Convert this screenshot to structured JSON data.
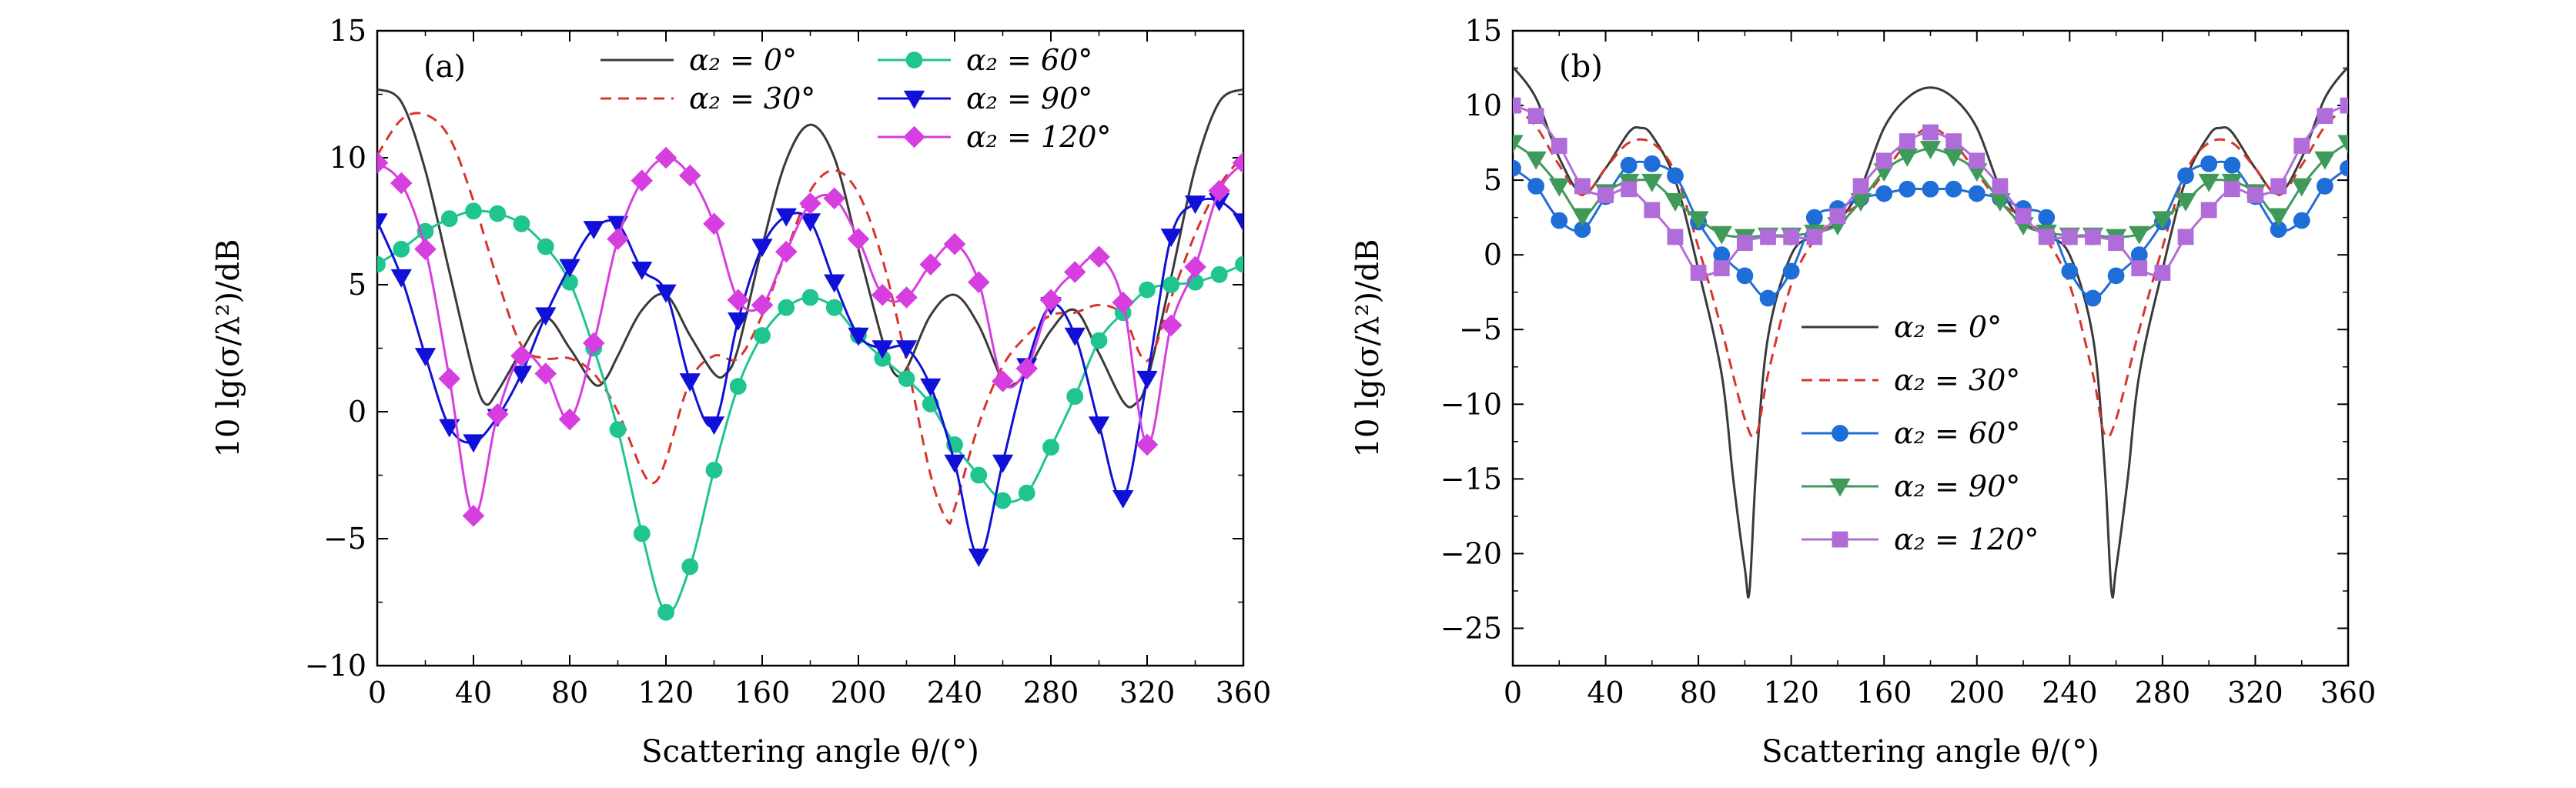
{
  "chart_data": [
    {
      "type": "line",
      "panel_label": "(a)",
      "xlabel": "Scattering angle θ/(°)",
      "ylabel": "10 lg(σ/λ²)/dB",
      "xlim": [
        0,
        360
      ],
      "ylim": [
        -10,
        15
      ],
      "xticks": [
        0,
        40,
        80,
        120,
        160,
        200,
        240,
        280,
        320,
        360
      ],
      "yticks": [
        -10,
        -5,
        0,
        5,
        10,
        15
      ],
      "xtick_labels": [
        "0",
        "40",
        "80",
        "120",
        "160",
        "200",
        "240",
        "280",
        "320",
        "360"
      ],
      "ytick_labels": [
        "−10",
        "−5",
        "0",
        "5",
        "10",
        "15"
      ],
      "legend_position": "top",
      "series": [
        {
          "name": "α₂ = 0°",
          "color": "#3a3a3a",
          "style": "solid",
          "marker": "none",
          "x": [
            0,
            10,
            20,
            30,
            40,
            45,
            50,
            60,
            70,
            80,
            90,
            95,
            100,
            110,
            120,
            130,
            140,
            145,
            150,
            160,
            170,
            180,
            190,
            200,
            210,
            215,
            220,
            230,
            240,
            250,
            260,
            265,
            270,
            280,
            290,
            300,
            310,
            315,
            320,
            330,
            340,
            350,
            360
          ],
          "y": [
            12.7,
            12.2,
            9.5,
            5.5,
            1.5,
            0.3,
            0.8,
            2.4,
            3.7,
            2.5,
            1.1,
            1.3,
            2.2,
            4.0,
            4.6,
            3.0,
            1.5,
            1.5,
            2.5,
            6.5,
            9.9,
            11.3,
            10.0,
            6.4,
            2.8,
            1.5,
            1.7,
            3.8,
            4.6,
            3.4,
            1.2,
            1.1,
            1.6,
            3.2,
            4.0,
            2.3,
            0.4,
            0.3,
            1.2,
            5.3,
            9.6,
            12.2,
            12.7
          ]
        },
        {
          "name": "α₂ = 30°",
          "color": "#d9342b",
          "style": "dashed",
          "marker": "none",
          "x": [
            0,
            10,
            20,
            30,
            40,
            50,
            60,
            70,
            80,
            90,
            100,
            110,
            115,
            120,
            130,
            140,
            150,
            160,
            170,
            180,
            190,
            200,
            210,
            220,
            230,
            237,
            240,
            250,
            260,
            270,
            280,
            290,
            300,
            310,
            320,
            330,
            340,
            350,
            360
          ],
          "y": [
            10.1,
            11.5,
            11.7,
            10.8,
            8.3,
            5.2,
            2.6,
            2.1,
            2.1,
            1.5,
            0.0,
            -2.3,
            -2.8,
            -1.9,
            1.2,
            2.2,
            2.1,
            3.8,
            6.3,
            8.7,
            9.5,
            8.6,
            6.0,
            2.0,
            -2.5,
            -4.3,
            -3.8,
            -0.5,
            1.8,
            3.0,
            3.8,
            3.9,
            4.2,
            3.8,
            2.0,
            4.5,
            7.0,
            8.9,
            10.1
          ]
        },
        {
          "name": "α₂ = 60°",
          "color": "#1fc491",
          "style": "solid",
          "marker": "circle",
          "x": [
            0,
            10,
            20,
            30,
            40,
            50,
            60,
            70,
            80,
            90,
            100,
            110,
            120,
            130,
            140,
            150,
            160,
            170,
            180,
            190,
            200,
            210,
            220,
            230,
            240,
            250,
            260,
            270,
            280,
            290,
            300,
            310,
            320,
            330,
            340,
            350,
            360
          ],
          "y": [
            5.8,
            6.4,
            7.1,
            7.6,
            7.9,
            7.8,
            7.4,
            6.5,
            5.1,
            2.5,
            -0.7,
            -4.8,
            -7.9,
            -6.1,
            -2.3,
            1.0,
            3.0,
            4.1,
            4.5,
            4.1,
            3.0,
            2.1,
            1.3,
            0.3,
            -1.3,
            -2.5,
            -3.5,
            -3.2,
            -1.4,
            0.6,
            2.8,
            3.9,
            4.8,
            5.0,
            5.1,
            5.4,
            5.8
          ]
        },
        {
          "name": "α₂ = 90°",
          "color": "#1010d8",
          "style": "solid",
          "marker": "triangle-down",
          "x": [
            0,
            10,
            20,
            30,
            40,
            50,
            60,
            70,
            80,
            90,
            100,
            110,
            120,
            130,
            140,
            150,
            160,
            170,
            180,
            190,
            200,
            210,
            220,
            230,
            240,
            250,
            260,
            270,
            280,
            290,
            300,
            310,
            320,
            330,
            340,
            350,
            360
          ],
          "y": [
            7.5,
            5.3,
            2.2,
            -0.6,
            -1.2,
            -0.2,
            1.5,
            3.8,
            5.7,
            7.2,
            7.4,
            5.6,
            4.7,
            1.2,
            -0.5,
            3.6,
            6.5,
            7.7,
            7.5,
            5.1,
            3.0,
            2.5,
            2.5,
            1.0,
            -2.0,
            -5.7,
            -2.0,
            1.8,
            4.2,
            3.0,
            -0.5,
            -3.4,
            1.3,
            6.9,
            8.2,
            8.3,
            7.5
          ]
        },
        {
          "name": "α₂ = 120°",
          "color": "#d63ee0",
          "style": "solid",
          "marker": "diamond",
          "x": [
            0,
            10,
            20,
            30,
            40,
            50,
            60,
            70,
            80,
            90,
            100,
            110,
            120,
            130,
            140,
            150,
            160,
            170,
            180,
            190,
            200,
            210,
            220,
            230,
            240,
            250,
            260,
            270,
            280,
            290,
            300,
            310,
            320,
            330,
            340,
            350,
            360
          ],
          "y": [
            9.8,
            9.0,
            6.4,
            1.3,
            -4.1,
            -0.1,
            2.2,
            1.5,
            -0.3,
            2.7,
            6.8,
            9.1,
            10.0,
            9.3,
            7.4,
            4.4,
            4.2,
            6.3,
            8.2,
            8.4,
            6.8,
            4.6,
            4.5,
            5.8,
            6.6,
            5.1,
            1.2,
            1.7,
            4.4,
            5.5,
            6.1,
            4.3,
            -1.3,
            3.4,
            5.7,
            8.7,
            9.8
          ]
        }
      ]
    },
    {
      "type": "line",
      "panel_label": "(b)",
      "xlabel": "Scattering angle θ/(°)",
      "ylabel": "10 lg(σ/λ²)/dB",
      "xlim": [
        0,
        360
      ],
      "ylim": [
        -27.5,
        15
      ],
      "xticks": [
        0,
        40,
        80,
        120,
        160,
        200,
        240,
        280,
        320,
        360
      ],
      "yticks": [
        -25,
        -20,
        -15,
        -10,
        -5,
        0,
        5,
        10,
        15
      ],
      "xtick_labels": [
        "0",
        "40",
        "80",
        "120",
        "160",
        "200",
        "240",
        "280",
        "320",
        "360"
      ],
      "ytick_labels": [
        "−25",
        "−20",
        "−15",
        "−10",
        "−5",
        "0",
        "5",
        "10",
        "15"
      ],
      "legend_position": "bottom-left",
      "series": [
        {
          "name": "α₂ = 0°",
          "color": "#3a3a3a",
          "style": "solid",
          "marker": "none",
          "x": [
            0,
            10,
            20,
            30,
            40,
            50,
            55,
            60,
            70,
            80,
            90,
            95,
            100,
            102,
            105,
            110,
            120,
            130,
            140,
            150,
            160,
            170,
            180,
            190,
            200,
            210,
            220,
            230,
            240,
            250,
            255,
            258,
            260,
            265,
            270,
            280,
            290,
            300,
            305,
            310,
            320,
            330,
            340,
            350,
            360
          ],
          "y": [
            12.6,
            10.5,
            6.5,
            4.1,
            5.8,
            8.2,
            8.5,
            8.0,
            5.0,
            -1.0,
            -8.0,
            -15.0,
            -21.0,
            -22.5,
            -14.0,
            -5.5,
            0.0,
            1.3,
            2.2,
            4.5,
            8.5,
            10.5,
            11.2,
            10.5,
            8.5,
            4.5,
            2.2,
            1.3,
            0.0,
            -5.5,
            -14.0,
            -22.5,
            -21.0,
            -15.0,
            -8.0,
            -1.0,
            5.0,
            8.0,
            8.5,
            8.2,
            5.8,
            4.1,
            6.5,
            10.5,
            12.6
          ]
        },
        {
          "name": "α₂ = 30°",
          "color": "#d9342b",
          "style": "dashed",
          "marker": "none",
          "x": [
            0,
            10,
            20,
            30,
            40,
            50,
            60,
            70,
            80,
            90,
            100,
            105,
            110,
            120,
            130,
            140,
            150,
            160,
            170,
            180,
            190,
            200,
            210,
            220,
            230,
            240,
            250,
            255,
            260,
            270,
            280,
            290,
            300,
            310,
            320,
            330,
            340,
            350,
            360
          ],
          "y": [
            10.0,
            8.6,
            6.0,
            4.0,
            5.8,
            7.5,
            7.5,
            5.5,
            0.5,
            -5.0,
            -11.0,
            -12.0,
            -8.0,
            -2.0,
            1.0,
            2.5,
            3.5,
            5.5,
            7.5,
            8.5,
            7.5,
            5.5,
            3.5,
            2.5,
            1.0,
            -2.0,
            -8.0,
            -12.0,
            -11.0,
            -5.0,
            0.5,
            5.5,
            7.5,
            7.5,
            5.8,
            4.0,
            6.0,
            8.6,
            10.0
          ]
        },
        {
          "name": "α₂ = 60°",
          "color": "#1f6ed8",
          "style": "solid",
          "marker": "circle",
          "x": [
            0,
            10,
            20,
            30,
            40,
            50,
            60,
            70,
            80,
            90,
            100,
            110,
            120,
            130,
            140,
            150,
            160,
            170,
            180,
            190,
            200,
            210,
            220,
            230,
            240,
            250,
            260,
            270,
            280,
            290,
            300,
            310,
            320,
            330,
            340,
            350,
            360
          ],
          "y": [
            5.8,
            4.6,
            2.3,
            1.7,
            3.9,
            6.0,
            6.1,
            5.3,
            2.2,
            0.0,
            -1.4,
            -2.9,
            -1.1,
            2.5,
            3.1,
            3.8,
            4.1,
            4.4,
            4.4,
            4.4,
            4.1,
            3.8,
            3.1,
            2.5,
            -1.1,
            -2.9,
            -1.4,
            0.0,
            2.2,
            5.3,
            6.1,
            6.0,
            3.9,
            1.7,
            2.3,
            4.6,
            5.8
          ]
        },
        {
          "name": "α₂ = 90°",
          "color": "#3f9a5a",
          "style": "solid",
          "marker": "triangle-down",
          "x": [
            0,
            10,
            20,
            30,
            40,
            50,
            60,
            70,
            80,
            90,
            100,
            110,
            120,
            130,
            140,
            150,
            160,
            170,
            180,
            190,
            200,
            210,
            220,
            230,
            240,
            250,
            260,
            270,
            280,
            290,
            300,
            310,
            320,
            330,
            340,
            350,
            360
          ],
          "y": [
            7.5,
            6.4,
            4.6,
            2.6,
            4.2,
            4.9,
            4.9,
            3.6,
            2.4,
            1.4,
            1.2,
            1.3,
            1.3,
            1.5,
            2.0,
            3.6,
            5.6,
            6.6,
            7.1,
            6.6,
            5.6,
            3.6,
            2.0,
            1.5,
            1.3,
            1.3,
            1.2,
            1.4,
            2.4,
            3.6,
            4.9,
            4.9,
            4.2,
            2.6,
            4.6,
            6.4,
            7.5
          ]
        },
        {
          "name": "α₂ = 120°",
          "color": "#b06cd8",
          "style": "solid",
          "marker": "square",
          "x": [
            0,
            10,
            20,
            30,
            40,
            50,
            60,
            70,
            80,
            90,
            100,
            110,
            120,
            130,
            140,
            150,
            160,
            170,
            180,
            190,
            200,
            210,
            220,
            230,
            240,
            250,
            260,
            270,
            280,
            290,
            300,
            310,
            320,
            330,
            340,
            350,
            360
          ],
          "y": [
            10.0,
            9.3,
            7.3,
            4.6,
            4.0,
            4.4,
            3.0,
            1.2,
            -1.2,
            -0.9,
            0.8,
            1.2,
            1.2,
            1.2,
            2.6,
            4.6,
            6.3,
            7.6,
            8.2,
            7.6,
            6.3,
            4.6,
            2.6,
            1.2,
            1.2,
            1.2,
            0.8,
            -0.9,
            -1.2,
            1.2,
            3.0,
            4.4,
            4.0,
            4.6,
            7.3,
            9.3,
            10.0
          ]
        }
      ]
    }
  ]
}
